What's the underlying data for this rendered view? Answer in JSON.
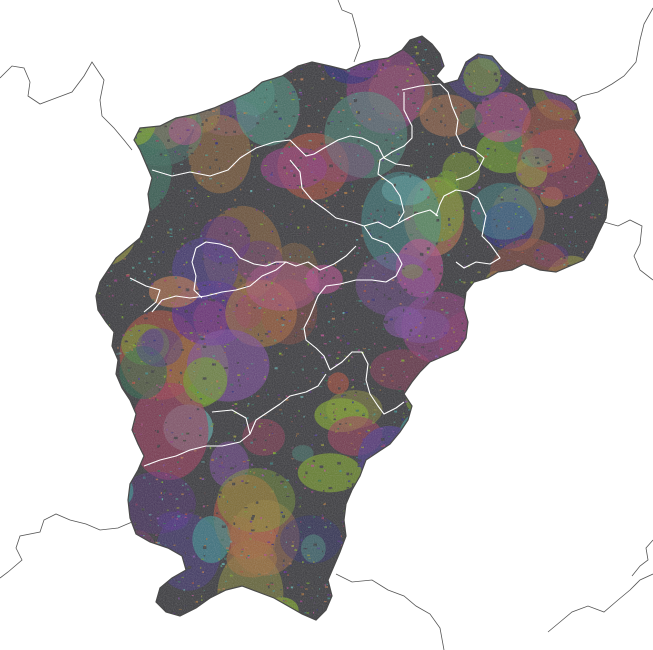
{
  "map": {
    "background_color": "#ffffff",
    "province_base_color": "#3a3a3e",
    "outer_border_color": "#4a4a4a",
    "prefecture_border_color": "#ffffff",
    "neighbor_border_color": "#555555",
    "watershed_palette": [
      "#8a3a7a",
      "#5a2a8a",
      "#2a2a7a",
      "#6a9a2a",
      "#9a3a5a",
      "#7a4a9a",
      "#3a6a5a",
      "#9a6a3a",
      "#4a8a7a",
      "#a04a3a",
      "#7aa02a",
      "#3a8a8a",
      "#b0704a",
      "#4a3a8a",
      "#8a8a3a",
      "#2a6a4a",
      "#b04a8a",
      "#5aa0a0"
    ],
    "prefecture_count": 11
  }
}
